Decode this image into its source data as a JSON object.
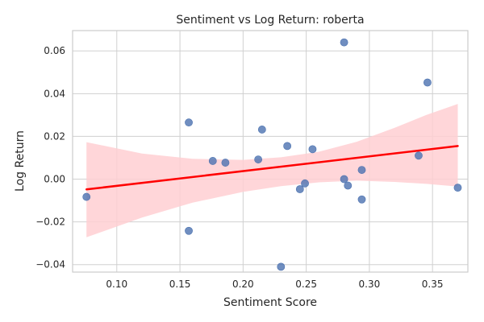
{
  "chart_data": {
    "type": "scatter",
    "title": "Sentiment vs Log Return: roberta",
    "xlabel": "Sentiment Score",
    "ylabel": "Log Return",
    "xlim": [
      0.065,
      0.378
    ],
    "ylim": [
      -0.0435,
      0.0695
    ],
    "xticks": [
      0.1,
      0.15,
      0.2,
      0.25,
      0.3,
      0.35
    ],
    "xtick_labels": [
      "0.10",
      "0.15",
      "0.20",
      "0.25",
      "0.30",
      "0.35"
    ],
    "yticks": [
      -0.04,
      -0.02,
      0.0,
      0.02,
      0.04,
      0.06
    ],
    "ytick_labels": [
      "−0.04",
      "−0.02",
      "0.00",
      "0.02",
      "0.04",
      "0.06"
    ],
    "grid": true,
    "points": [
      {
        "x": 0.076,
        "y": -0.0083
      },
      {
        "x": 0.157,
        "y": 0.0265
      },
      {
        "x": 0.157,
        "y": -0.0242
      },
      {
        "x": 0.176,
        "y": 0.0085
      },
      {
        "x": 0.186,
        "y": 0.0077
      },
      {
        "x": 0.212,
        "y": 0.0092
      },
      {
        "x": 0.215,
        "y": 0.0232
      },
      {
        "x": 0.23,
        "y": -0.041
      },
      {
        "x": 0.235,
        "y": 0.0155
      },
      {
        "x": 0.245,
        "y": -0.0047
      },
      {
        "x": 0.249,
        "y": -0.002
      },
      {
        "x": 0.255,
        "y": 0.014
      },
      {
        "x": 0.28,
        "y": 0.064
      },
      {
        "x": 0.28,
        "y": 0.0
      },
      {
        "x": 0.283,
        "y": -0.003
      },
      {
        "x": 0.294,
        "y": -0.0095
      },
      {
        "x": 0.294,
        "y": 0.0043
      },
      {
        "x": 0.339,
        "y": 0.011
      },
      {
        "x": 0.346,
        "y": 0.0452
      },
      {
        "x": 0.37,
        "y": -0.004
      }
    ],
    "regression": {
      "x": [
        0.076,
        0.37
      ],
      "y": [
        -0.0048,
        0.0155
      ],
      "ci_band": [
        {
          "x": 0.076,
          "lo": -0.0272,
          "hi": 0.0173
        },
        {
          "x": 0.12,
          "lo": -0.018,
          "hi": 0.012
        },
        {
          "x": 0.16,
          "lo": -0.011,
          "hi": 0.0095
        },
        {
          "x": 0.2,
          "lo": -0.006,
          "hi": 0.009
        },
        {
          "x": 0.23,
          "lo": -0.0033,
          "hi": 0.0102
        },
        {
          "x": 0.26,
          "lo": -0.0015,
          "hi": 0.0128
        },
        {
          "x": 0.29,
          "lo": -0.0007,
          "hi": 0.0175
        },
        {
          "x": 0.32,
          "lo": -0.0013,
          "hi": 0.024
        },
        {
          "x": 0.345,
          "lo": -0.0022,
          "hi": 0.03
        },
        {
          "x": 0.37,
          "lo": -0.0035,
          "hi": 0.0352
        }
      ]
    },
    "colors": {
      "point": "#4c72b0",
      "line": "#ff0000",
      "band": "#ffcfd2",
      "grid": "#d0d0d0",
      "frame": "#cccccc"
    }
  }
}
